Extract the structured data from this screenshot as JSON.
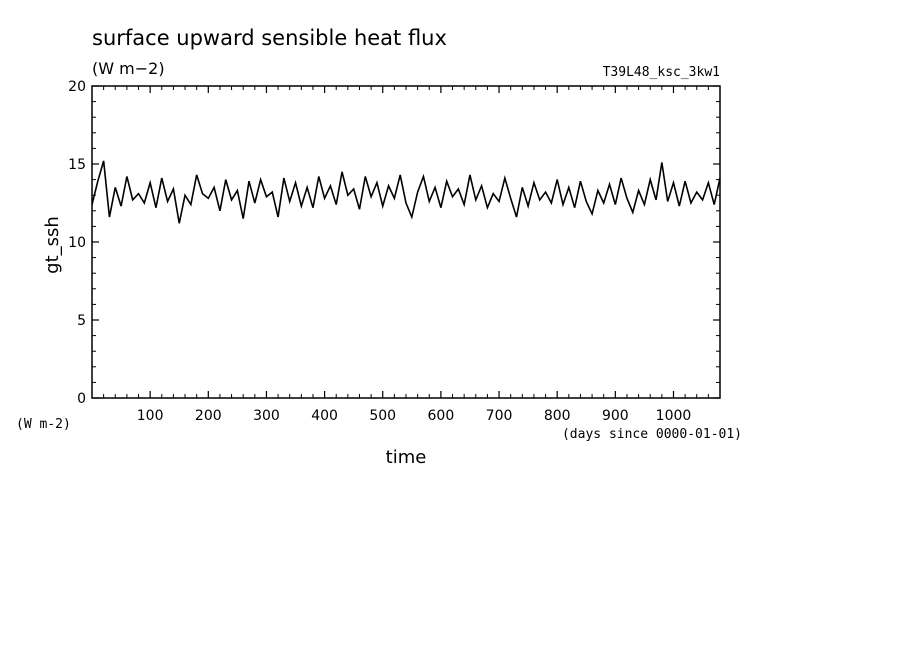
{
  "chart_data": {
    "type": "line",
    "title": "surface upward sensible heat flux",
    "units": "(W m−2)",
    "run_label": "T39L48_ksc_3kw1",
    "xlabel": "time",
    "x_units": "(days since 0000-01-01)",
    "ylabel": "gt_ssh",
    "y_units": "(W m-2)",
    "xlim": [
      0,
      1080
    ],
    "ylim": [
      0,
      20
    ],
    "x_ticks": [
      100,
      200,
      300,
      400,
      500,
      600,
      700,
      800,
      900,
      1000
    ],
    "y_ticks": [
      0,
      5,
      10,
      15,
      20
    ],
    "grid": false,
    "series": [
      {
        "x": [
          0,
          10,
          20,
          30,
          40,
          50,
          60,
          70,
          80,
          90,
          100,
          110,
          120,
          130,
          140,
          150,
          160,
          170,
          180,
          190,
          200,
          210,
          220,
          230,
          240,
          250,
          260,
          270,
          280,
          290,
          300,
          310,
          320,
          330,
          340,
          350,
          360,
          370,
          380,
          390,
          400,
          410,
          420,
          430,
          440,
          450,
          460,
          470,
          480,
          490,
          500,
          510,
          520,
          530,
          540,
          550,
          560,
          570,
          580,
          590,
          600,
          610,
          620,
          630,
          640,
          650,
          660,
          670,
          680,
          690,
          700,
          710,
          720,
          730,
          740,
          750,
          760,
          770,
          780,
          790,
          800,
          810,
          820,
          830,
          840,
          850,
          860,
          870,
          880,
          890,
          900,
          910,
          920,
          930,
          940,
          950,
          960,
          970,
          980,
          990,
          1000,
          1010,
          1020,
          1030,
          1040,
          1050,
          1060,
          1070,
          1080
        ],
        "values": [
          12.4,
          13.9,
          15.2,
          11.6,
          13.5,
          12.3,
          14.2,
          12.7,
          13.1,
          12.5,
          13.8,
          12.2,
          14.1,
          12.6,
          13.4,
          11.2,
          13.0,
          12.4,
          14.3,
          13.1,
          12.8,
          13.5,
          12.0,
          14.0,
          12.7,
          13.3,
          11.5,
          13.9,
          12.5,
          14.0,
          12.9,
          13.2,
          11.6,
          14.1,
          12.6,
          13.8,
          12.3,
          13.5,
          12.2,
          14.2,
          12.8,
          13.6,
          12.4,
          14.5,
          13.0,
          13.4,
          12.1,
          14.2,
          12.9,
          13.8,
          12.3,
          13.6,
          12.8,
          14.3,
          12.5,
          11.6,
          13.2,
          14.2,
          12.6,
          13.5,
          12.2,
          13.9,
          12.9,
          13.4,
          12.4,
          14.3,
          12.7,
          13.6,
          12.2,
          13.1,
          12.6,
          14.1,
          12.8,
          11.6,
          13.5,
          12.3,
          13.8,
          12.7,
          13.2,
          12.5,
          14.0,
          12.4,
          13.5,
          12.2,
          13.9,
          12.6,
          11.8,
          13.3,
          12.5,
          13.7,
          12.4,
          14.1,
          12.8,
          11.9,
          13.3,
          12.4,
          14.0,
          12.7,
          15.1,
          12.6,
          13.8,
          12.3,
          13.9,
          12.5,
          13.2,
          12.7,
          13.8,
          12.4,
          14.1
        ]
      }
    ]
  }
}
